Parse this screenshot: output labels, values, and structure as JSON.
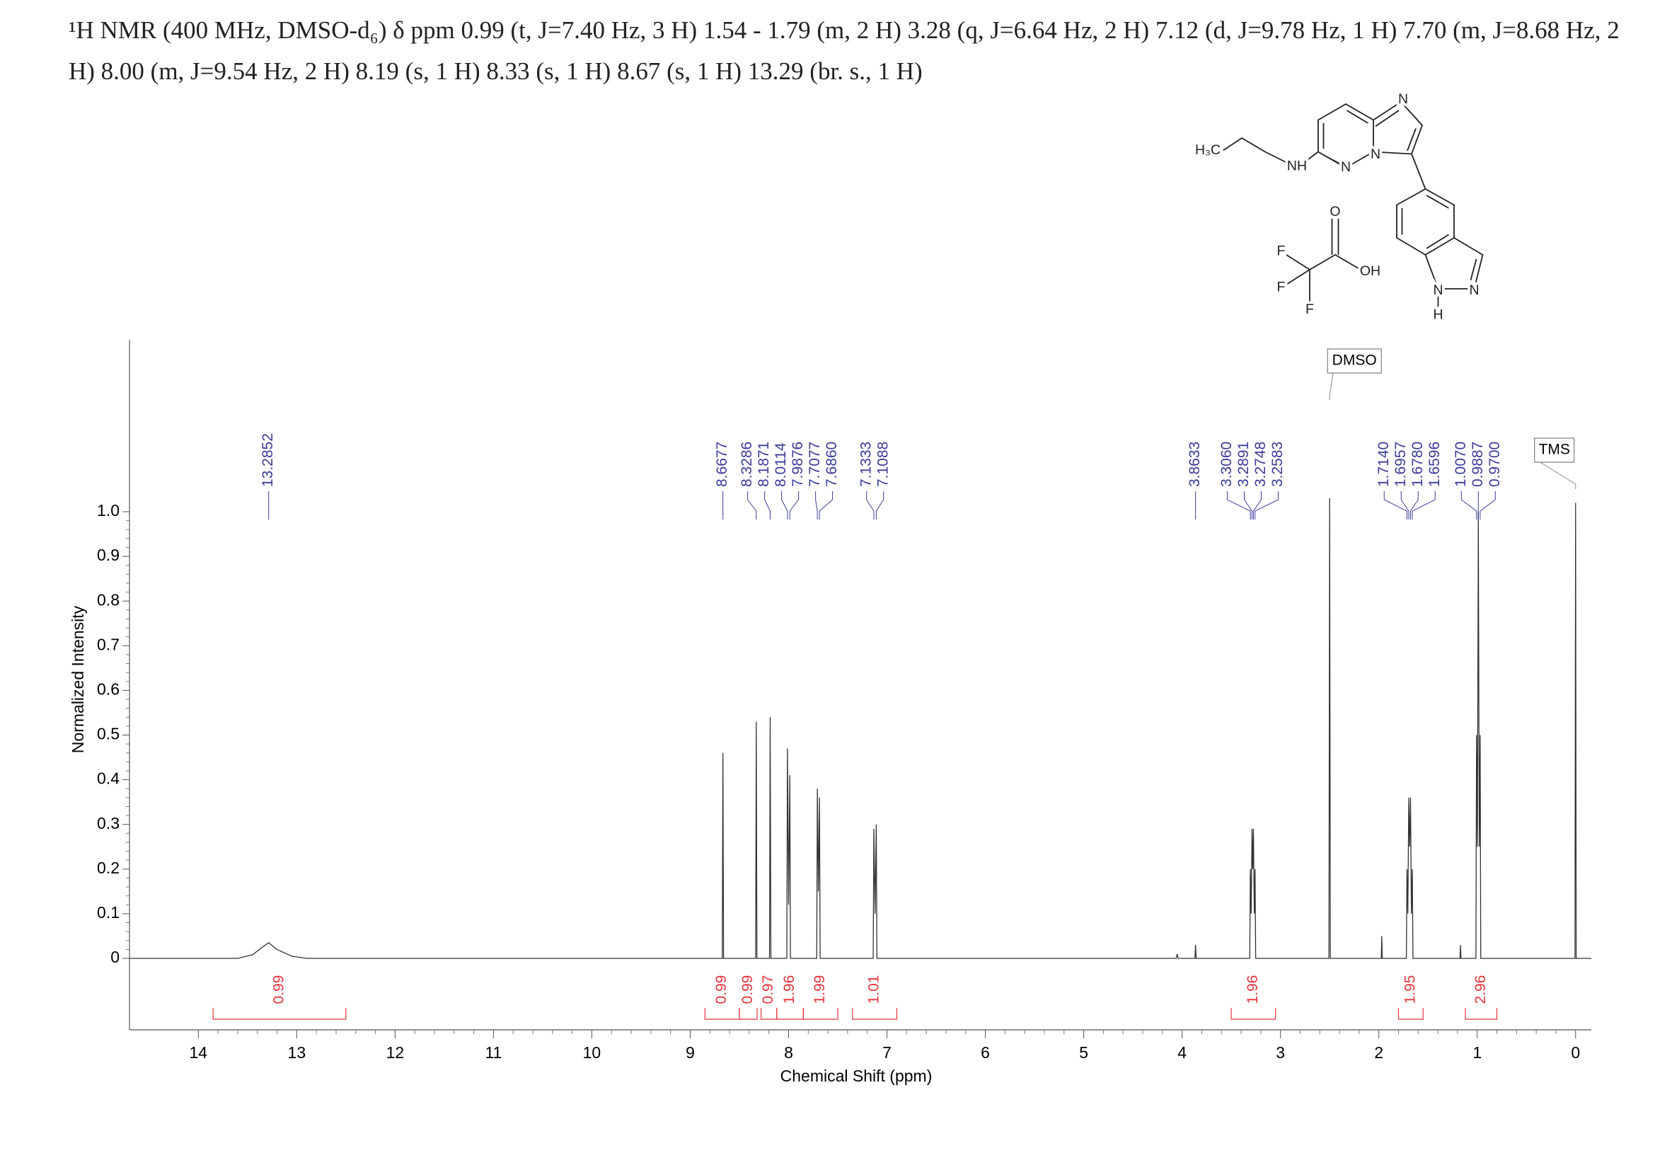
{
  "chart_data": {
    "type": "nmr",
    "title": "¹H NMR (400 MHz, DMSO-d₆) δ ppm 0.99 (t, J=7.40 Hz, 3 H) 1.54 - 1.79 (m, 2 H) 3.28 (q, J=6.64 Hz, 2 H) 7.12 (d, J=9.78 Hz, 1 H) 7.70 (m, J=8.68 Hz, 2 H) 8.00 (m, J=9.54 Hz, 2 H) 8.19 (s, 1 H) 8.33 (s, 1 H) 8.67 (s, 1 H) 13.29 (br. s., 1 H)",
    "x_label": "Chemical Shift (ppm)",
    "y_label": "Normalized Intensity",
    "xlim": [
      14.7,
      -0.16
    ],
    "ylim": [
      -0.16,
      1.385
    ],
    "xticks": [
      14,
      13,
      12,
      11,
      10,
      9,
      8,
      7,
      6,
      5,
      4,
      3,
      2,
      1,
      0
    ],
    "yticks": [
      0,
      0.1,
      0.2,
      0.3,
      0.4,
      0.5,
      0.6,
      0.7,
      0.8,
      0.9,
      {
        "value": 1,
        "label": "1.0"
      }
    ],
    "series": [
      {
        "color": "#333333",
        "x": [
          14.7,
          13.6,
          13.45,
          13.35,
          13.285,
          13.2,
          13.05,
          12.9,
          8.674,
          8.6677,
          8.661,
          8.335,
          8.3286,
          8.322,
          8.194,
          8.1871,
          8.18,
          8.018,
          8.0114,
          7.9995,
          7.9876,
          7.981,
          7.714,
          7.7077,
          7.697,
          7.686,
          7.679,
          7.14,
          7.1333,
          7.121,
          7.1088,
          7.102,
          4.06,
          4.05,
          4.04,
          3.869,
          3.8633,
          3.857,
          3.312,
          3.306,
          3.2975,
          3.2891,
          3.282,
          3.2748,
          3.266,
          3.2583,
          3.252,
          2.507,
          2.5,
          2.493,
          1.975,
          1.97,
          1.965,
          1.72,
          1.714,
          1.705,
          1.6957,
          1.687,
          1.678,
          1.669,
          1.6596,
          1.653,
          1.175,
          1.17,
          1.165,
          1.013,
          1.007,
          0.998,
          0.9887,
          0.979,
          0.97,
          0.964,
          0.006,
          0,
          -0.006,
          -0.16
        ],
        "values": [
          0,
          0,
          0.008,
          0.025,
          0.035,
          0.02,
          0.005,
          0,
          0,
          0.46,
          0,
          0,
          0.53,
          0,
          0,
          0.54,
          0,
          0,
          0.47,
          0.12,
          0.41,
          0,
          0,
          0.38,
          0.15,
          0.36,
          0,
          0,
          0.29,
          0.1,
          0.3,
          0,
          0,
          0.01,
          0,
          0,
          0.03,
          0,
          0,
          0.2,
          0.1,
          0.29,
          0.2,
          0.29,
          0.1,
          0.2,
          0,
          0,
          1.03,
          0,
          0,
          0.05,
          0,
          0,
          0.2,
          0.1,
          0.36,
          0.25,
          0.36,
          0.1,
          0.2,
          0,
          0,
          0.03,
          0,
          0,
          0.5,
          0.25,
          1.0,
          0.25,
          0.5,
          0,
          0,
          1.02,
          0,
          0
        ]
      }
    ],
    "peak_picks": [
      13.2852,
      8.6677,
      8.3286,
      8.1871,
      8.0114,
      7.9876,
      7.7077,
      {
        "value": 7.686,
        "label": "7.6860"
      },
      7.1333,
      7.1088,
      3.8633,
      {
        "value": 3.306,
        "label": "3.3060"
      },
      3.2891,
      3.2748,
      3.2583,
      {
        "value": 1.714,
        "label": "1.7140"
      },
      1.6957,
      {
        "value": 1.678,
        "label": "1.6780"
      },
      1.6596,
      {
        "value": 1.007,
        "label": "1.0070"
      },
      0.9887,
      {
        "value": 0.97,
        "label": "0.9700"
      }
    ],
    "peak_label_color": "#3b3b9c",
    "integrals": [
      {
        "from": 13.85,
        "to": 12.5,
        "value": 0.99
      },
      {
        "from": 8.85,
        "to": 8.5,
        "value": 0.99
      },
      {
        "from": 8.5,
        "to": 8.32,
        "value": 0.99
      },
      {
        "from": 8.28,
        "to": 8.12,
        "value": 0.97
      },
      {
        "from": 8.12,
        "to": 7.85,
        "value": 1.96
      },
      {
        "from": 7.85,
        "to": 7.5,
        "value": 1.99
      },
      {
        "from": 7.35,
        "to": 6.9,
        "value": 1.01
      },
      {
        "from": 3.5,
        "to": 3.05,
        "value": 1.96
      },
      {
        "from": 1.8,
        "to": 1.55,
        "value": 1.95
      },
      {
        "from": 1.12,
        "to": 0.8,
        "value": 2.96
      }
    ],
    "integral_color": "#e8343a",
    "annotations": [
      {
        "text": "DMSO",
        "x": 2.5
      },
      {
        "text": "TMS",
        "x": 0
      }
    ],
    "structure_labels": [
      "H₃C",
      "NH",
      "N",
      "N",
      "N",
      "N",
      "N",
      "H",
      "O",
      "OH",
      "F",
      "F",
      "F"
    ]
  }
}
